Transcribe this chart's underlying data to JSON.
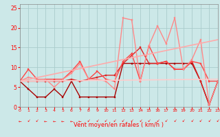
{
  "background_color": "#cce8e8",
  "grid_color": "#aacccc",
  "xlabel": "Vent moyen/en rafales ( km/h )",
  "xlim": [
    0,
    23
  ],
  "ylim": [
    0,
    26
  ],
  "yticks": [
    0,
    5,
    10,
    15,
    20,
    25
  ],
  "xticks": [
    0,
    1,
    2,
    3,
    4,
    5,
    6,
    7,
    8,
    9,
    10,
    11,
    12,
    13,
    14,
    15,
    16,
    17,
    18,
    19,
    20,
    21,
    22,
    23
  ],
  "series": [
    {
      "comment": "darkest red - flat low line ~2.5, then rises",
      "x": [
        0,
        1,
        2,
        3,
        4,
        5,
        6,
        7,
        8,
        9,
        10,
        11,
        12,
        13,
        14,
        15,
        16,
        17,
        18,
        19,
        20,
        21,
        22,
        23
      ],
      "y": [
        6.5,
        4.5,
        2.5,
        2.5,
        4.5,
        2.5,
        6.5,
        2.5,
        2.5,
        2.5,
        2.5,
        2.5,
        11.0,
        11.0,
        11.0,
        11.0,
        11.0,
        11.0,
        11.0,
        11.0,
        11.0,
        6.5,
        0.5,
        6.5
      ],
      "color": "#aa0000",
      "lw": 1.0,
      "marker": "s",
      "ms": 2.0
    },
    {
      "comment": "medium dark red",
      "x": [
        0,
        1,
        2,
        3,
        4,
        5,
        6,
        7,
        8,
        9,
        10,
        11,
        12,
        13,
        14,
        15,
        16,
        17,
        18,
        19,
        20,
        21,
        22,
        23
      ],
      "y": [
        6.5,
        6.5,
        6.5,
        6.5,
        6.5,
        6.5,
        7.0,
        6.5,
        7.0,
        7.5,
        8.0,
        8.0,
        11.0,
        13.0,
        15.0,
        11.0,
        11.0,
        11.5,
        9.5,
        9.5,
        11.5,
        6.5,
        0.5,
        6.5
      ],
      "color": "#dd2222",
      "lw": 1.0,
      "marker": "s",
      "ms": 2.0
    },
    {
      "comment": "medium red - has triangle shape around x=7-9",
      "x": [
        0,
        1,
        2,
        3,
        4,
        5,
        6,
        7,
        8,
        9,
        10,
        11,
        12,
        13,
        14,
        15,
        16,
        17,
        18,
        19,
        20,
        21,
        22,
        23
      ],
      "y": [
        6.5,
        9.5,
        7.0,
        7.0,
        7.0,
        7.0,
        9.0,
        11.5,
        7.0,
        9.0,
        7.0,
        6.5,
        11.5,
        13.5,
        6.5,
        15.5,
        11.0,
        11.5,
        9.5,
        9.5,
        11.5,
        11.0,
        6.5,
        6.5
      ],
      "color": "#ff4444",
      "lw": 1.0,
      "marker": "s",
      "ms": 2.0
    },
    {
      "comment": "light pink with big peaks at 12-13 and 18",
      "x": [
        0,
        1,
        2,
        3,
        4,
        5,
        6,
        7,
        8,
        9,
        10,
        11,
        12,
        13,
        14,
        15,
        16,
        17,
        18,
        19,
        20,
        21,
        22,
        23
      ],
      "y": [
        6.5,
        7.5,
        7.0,
        7.0,
        5.0,
        7.0,
        8.5,
        11.0,
        7.0,
        7.0,
        6.5,
        4.5,
        22.5,
        22.0,
        6.5,
        15.5,
        20.5,
        16.0,
        22.5,
        9.5,
        12.0,
        17.0,
        0.5,
        6.5
      ],
      "color": "#ff8888",
      "lw": 1.0,
      "marker": "s",
      "ms": 2.0
    },
    {
      "comment": "diagonal line from 0,6.5 to 23,17 - light salmon",
      "x": [
        0,
        23
      ],
      "y": [
        6.5,
        17.0
      ],
      "color": "#ffaaaa",
      "lw": 1.2,
      "marker": null,
      "ms": 0
    },
    {
      "comment": "nearly flat line from 0,6.5 to 23,7 - very light pink",
      "x": [
        0,
        23
      ],
      "y": [
        6.5,
        7.0
      ],
      "color": "#ffcccc",
      "lw": 1.2,
      "marker": null,
      "ms": 0
    }
  ]
}
